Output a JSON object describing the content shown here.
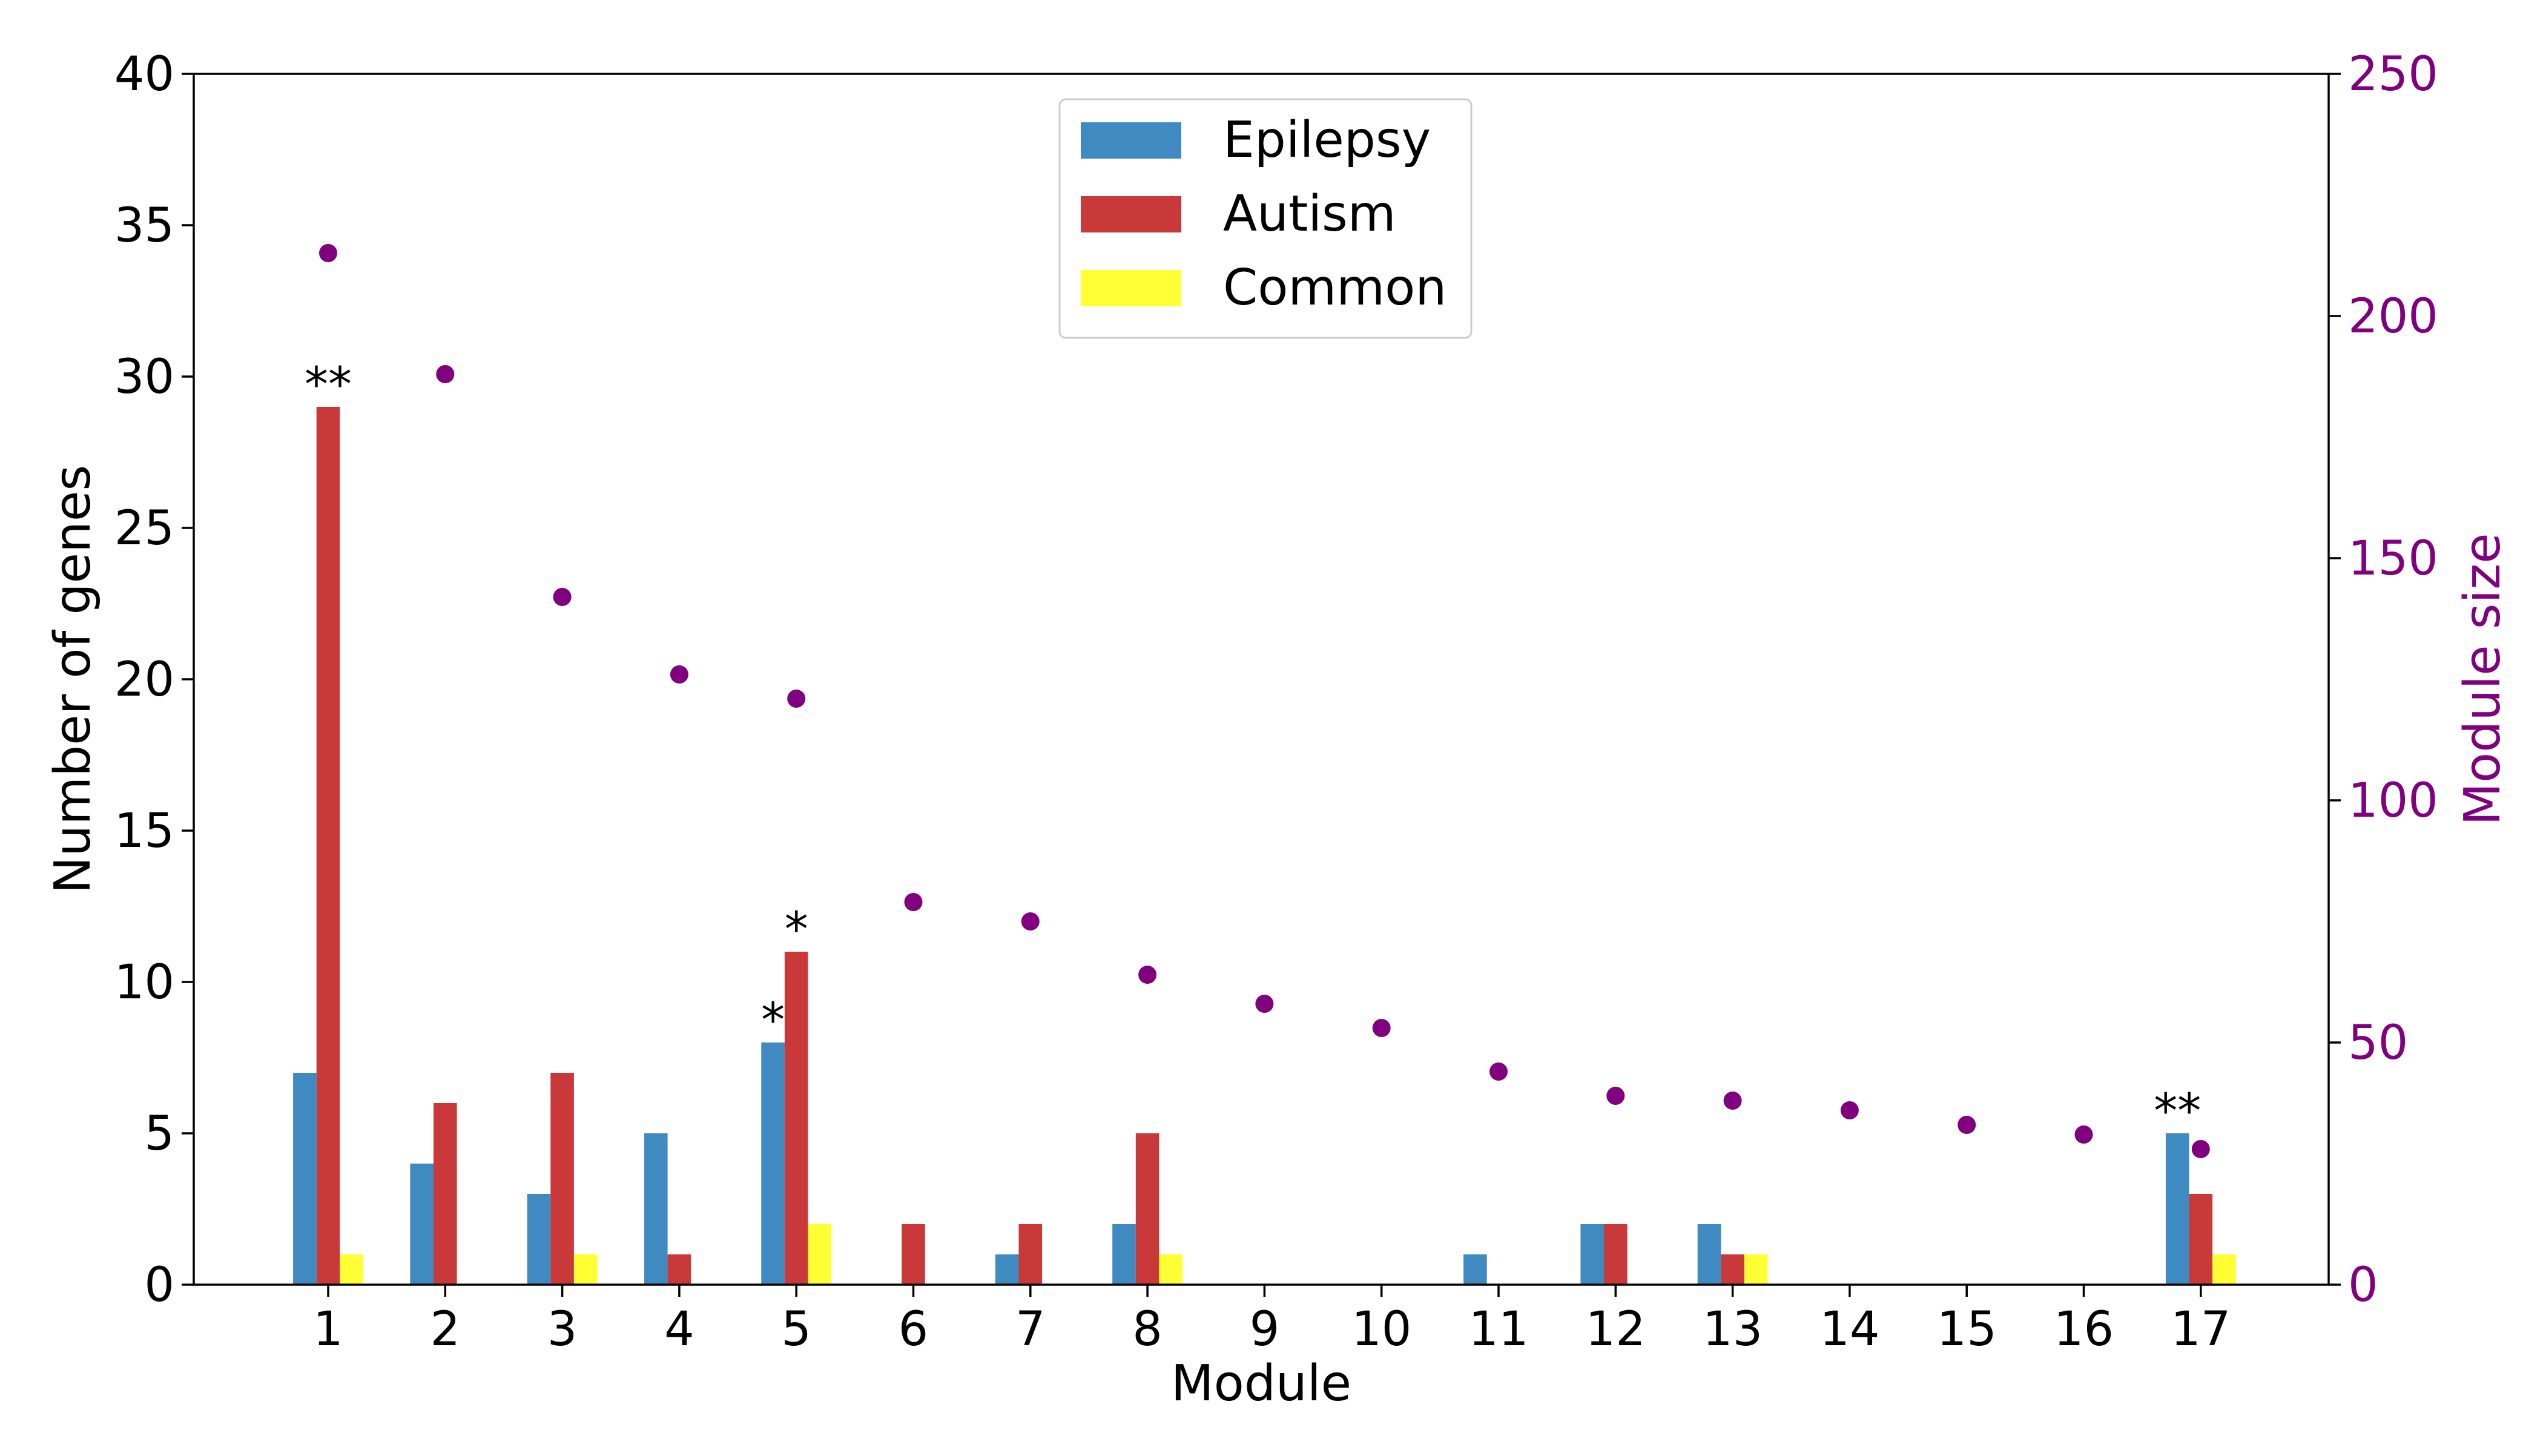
{
  "chart_data": {
    "type": "bar",
    "title": "",
    "xlabel": "Module",
    "ylabel": "Number of genes",
    "y2label": "Module size",
    "categories": [
      "1",
      "2",
      "3",
      "4",
      "5",
      "6",
      "7",
      "8",
      "9",
      "10",
      "11",
      "12",
      "13",
      "14",
      "15",
      "16",
      "17"
    ],
    "ylim": [
      0,
      40
    ],
    "yticks": [
      "0",
      "5",
      "10",
      "15",
      "20",
      "25",
      "30",
      "35",
      "40"
    ],
    "y2lim": [
      0,
      250
    ],
    "y2ticks": [
      "0",
      "50",
      "100",
      "150",
      "200",
      "250"
    ],
    "grid": false,
    "legend_position": "top-center",
    "series": [
      {
        "name": "Epilepsy",
        "color": "#3f8ac1",
        "values": [
          7,
          4,
          3,
          5,
          8,
          0,
          1,
          2,
          0,
          0,
          1,
          2,
          2,
          0,
          0,
          0,
          5
        ]
      },
      {
        "name": "Autism",
        "color": "#c9393a",
        "values": [
          29,
          6,
          7,
          1,
          11,
          2,
          2,
          5,
          0,
          0,
          0,
          2,
          1,
          0,
          0,
          0,
          3
        ]
      },
      {
        "name": "Common",
        "color": "#ffff33",
        "values": [
          1,
          0,
          1,
          0,
          2,
          0,
          0,
          1,
          0,
          0,
          0,
          0,
          1,
          0,
          0,
          0,
          1
        ]
      }
    ],
    "module_size": {
      "axis": "right",
      "type": "scatter",
      "color": "#800080",
      "values": [
        213,
        188,
        142,
        126,
        121,
        79,
        75,
        64,
        58,
        53,
        44,
        39,
        38,
        36,
        33,
        31,
        28
      ]
    },
    "annotations": [
      {
        "text": "**",
        "category": "1",
        "series": "Autism"
      },
      {
        "text": "*",
        "category": "5",
        "series": "Epilepsy"
      },
      {
        "text": "*",
        "category": "5",
        "series": "Autism"
      },
      {
        "text": "**",
        "category": "17",
        "series": "Epilepsy"
      }
    ]
  }
}
